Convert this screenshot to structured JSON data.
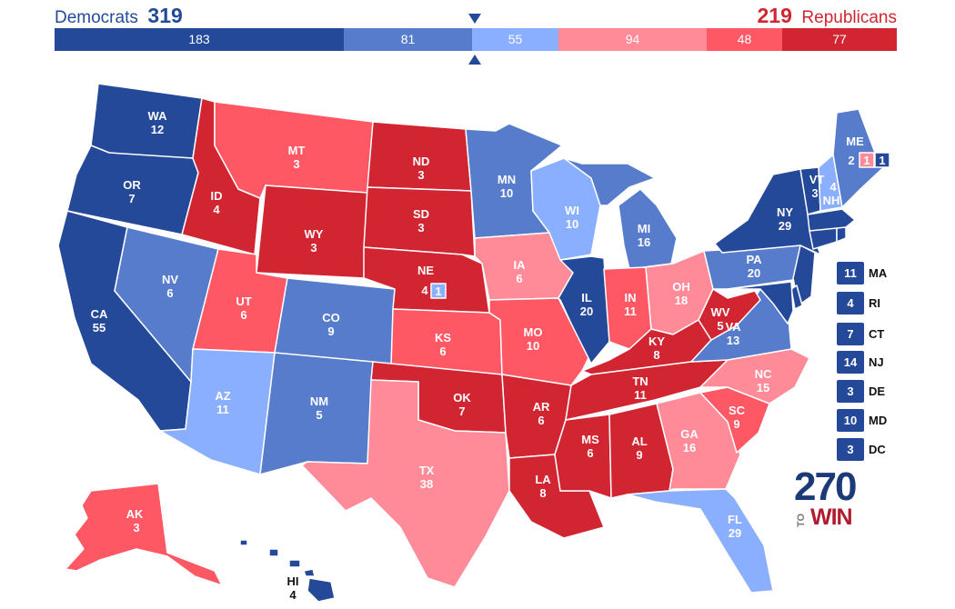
{
  "header": {
    "dem_label": "Democrats",
    "dem_total": "319",
    "rep_total": "219",
    "rep_label": "Republicans"
  },
  "tally": [
    {
      "value": 183,
      "color": "#244999"
    },
    {
      "value": 81,
      "color": "#577ccc"
    },
    {
      "value": 55,
      "color": "#8aafff"
    },
    {
      "value": 94,
      "color": "#ff8b98"
    },
    {
      "value": 48,
      "color": "#ff5865"
    },
    {
      "value": 77,
      "color": "#d22532"
    }
  ],
  "colors": {
    "safe_dem": "#244999",
    "likely_dem": "#577ccc",
    "lean_dem": "#8aafff",
    "lean_rep": "#ff8b98",
    "likely_rep": "#ff5865",
    "safe_rep": "#d22532"
  },
  "states": [
    {
      "abbr": "WA",
      "ev": "12",
      "rating": "safe_dem"
    },
    {
      "abbr": "OR",
      "ev": "7",
      "rating": "safe_dem"
    },
    {
      "abbr": "CA",
      "ev": "55",
      "rating": "safe_dem"
    },
    {
      "abbr": "ID",
      "ev": "4",
      "rating": "safe_rep"
    },
    {
      "abbr": "NV",
      "ev": "6",
      "rating": "likely_dem"
    },
    {
      "abbr": "MT",
      "ev": "3",
      "rating": "likely_rep"
    },
    {
      "abbr": "WY",
      "ev": "3",
      "rating": "safe_rep"
    },
    {
      "abbr": "UT",
      "ev": "6",
      "rating": "likely_rep"
    },
    {
      "abbr": "AZ",
      "ev": "11",
      "rating": "lean_dem"
    },
    {
      "abbr": "CO",
      "ev": "9",
      "rating": "likely_dem"
    },
    {
      "abbr": "NM",
      "ev": "5",
      "rating": "likely_dem"
    },
    {
      "abbr": "ND",
      "ev": "3",
      "rating": "safe_rep"
    },
    {
      "abbr": "SD",
      "ev": "3",
      "rating": "safe_rep"
    },
    {
      "abbr": "NE",
      "ev": "4",
      "rating": "safe_rep"
    },
    {
      "abbr": "KS",
      "ev": "6",
      "rating": "likely_rep"
    },
    {
      "abbr": "OK",
      "ev": "7",
      "rating": "safe_rep"
    },
    {
      "abbr": "TX",
      "ev": "38",
      "rating": "lean_rep"
    },
    {
      "abbr": "MN",
      "ev": "10",
      "rating": "likely_dem"
    },
    {
      "abbr": "IA",
      "ev": "6",
      "rating": "lean_rep"
    },
    {
      "abbr": "MO",
      "ev": "10",
      "rating": "likely_rep"
    },
    {
      "abbr": "AR",
      "ev": "6",
      "rating": "safe_rep"
    },
    {
      "abbr": "LA",
      "ev": "8",
      "rating": "safe_rep"
    },
    {
      "abbr": "WI",
      "ev": "10",
      "rating": "lean_dem"
    },
    {
      "abbr": "IL",
      "ev": "20",
      "rating": "safe_dem"
    },
    {
      "abbr": "MI",
      "ev": "16",
      "rating": "likely_dem"
    },
    {
      "abbr": "IN",
      "ev": "11",
      "rating": "likely_rep"
    },
    {
      "abbr": "OH",
      "ev": "18",
      "rating": "lean_rep"
    },
    {
      "abbr": "KY",
      "ev": "8",
      "rating": "safe_rep"
    },
    {
      "abbr": "TN",
      "ev": "11",
      "rating": "safe_rep"
    },
    {
      "abbr": "MS",
      "ev": "6",
      "rating": "safe_rep"
    },
    {
      "abbr": "AL",
      "ev": "9",
      "rating": "safe_rep"
    },
    {
      "abbr": "GA",
      "ev": "16",
      "rating": "lean_rep"
    },
    {
      "abbr": "FL",
      "ev": "29",
      "rating": "lean_dem"
    },
    {
      "abbr": "SC",
      "ev": "9",
      "rating": "likely_rep"
    },
    {
      "abbr": "NC",
      "ev": "15",
      "rating": "lean_rep"
    },
    {
      "abbr": "VA",
      "ev": "13",
      "rating": "likely_dem"
    },
    {
      "abbr": "WV",
      "ev": "5",
      "rating": "safe_rep"
    },
    {
      "abbr": "PA",
      "ev": "20",
      "rating": "likely_dem"
    },
    {
      "abbr": "NY",
      "ev": "29",
      "rating": "safe_dem"
    },
    {
      "abbr": "VT",
      "ev": "3",
      "rating": "safe_dem"
    },
    {
      "abbr": "NH",
      "ev": "4",
      "rating": "lean_dem"
    },
    {
      "abbr": "ME",
      "ev": "2",
      "rating": "likely_dem"
    },
    {
      "abbr": "AK",
      "ev": "3",
      "rating": "likely_rep"
    },
    {
      "abbr": "HI",
      "ev": "4",
      "rating": "safe_dem"
    },
    {
      "abbr": "MA",
      "ev": "11",
      "rating": "safe_dem"
    },
    {
      "abbr": "RI",
      "ev": "4",
      "rating": "safe_dem"
    },
    {
      "abbr": "CT",
      "ev": "7",
      "rating": "safe_dem"
    },
    {
      "abbr": "NJ",
      "ev": "14",
      "rating": "safe_dem"
    },
    {
      "abbr": "DE",
      "ev": "3",
      "rating": "safe_dem"
    },
    {
      "abbr": "MD",
      "ev": "10",
      "rating": "safe_dem"
    },
    {
      "abbr": "DC",
      "ev": "3",
      "rating": "safe_dem"
    }
  ],
  "districts": {
    "ne2": {
      "value": "1",
      "rating": "lean_dem"
    },
    "me1": {
      "value": "1",
      "rating": "lean_rep"
    },
    "me2": {
      "value": "1",
      "rating": "safe_dem"
    }
  },
  "logo": {
    "number": "270",
    "to": "TO",
    "win": "WIN"
  }
}
